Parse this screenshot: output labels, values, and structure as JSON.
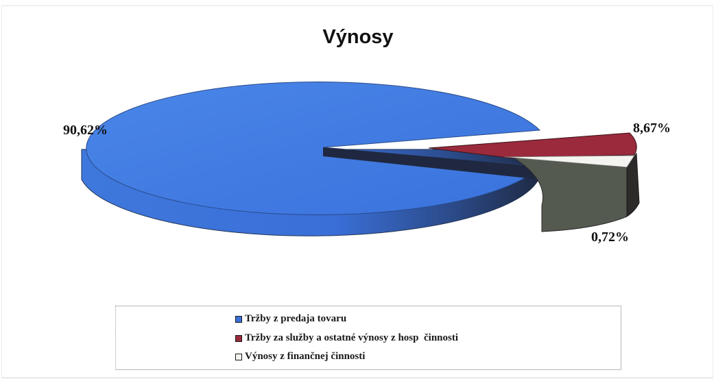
{
  "chart_data": {
    "type": "pie",
    "title": "Výnosy",
    "slices": [
      {
        "label": "Tržby z predaja tovaru",
        "value": 90.62,
        "value_label": "90,62%",
        "color": "#3a6fd8"
      },
      {
        "label": "Tržby za služby a ostatné výnosy z hosp  činnosti",
        "value": 8.67,
        "value_label": "8,67%",
        "color": "#9a2a3c"
      },
      {
        "label": "Výnosy z finančnej činnosti",
        "value": 0.72,
        "value_label": "0,72%",
        "color": "#f4f4f0"
      }
    ],
    "legend_position": "bottom",
    "three_d": true
  }
}
